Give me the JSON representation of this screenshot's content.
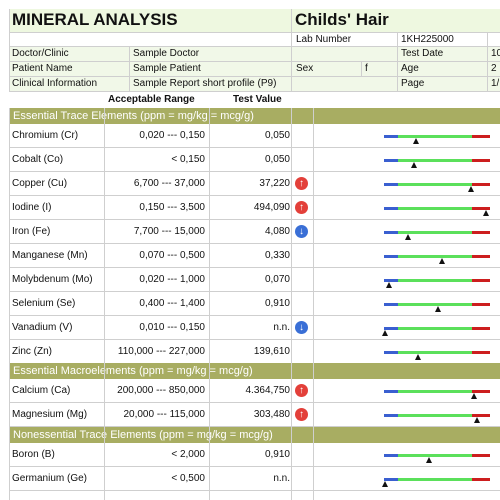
{
  "header": {
    "report_title": "MINERAL ANALYSIS",
    "sample_type": "Childs' Hair",
    "lab_number_label": "Lab Number",
    "lab_number": "1KH225000",
    "info": {
      "doctor_label": "Doctor/Clinic",
      "doctor": "Sample Doctor",
      "patient_label": "Patient Name",
      "patient": "Sample Patient",
      "clinical_label": "Clinical Information",
      "clinical": "Sample Report short profile (P9)",
      "sex_label": "Sex",
      "sex": "f",
      "test_date_label": "Test Date",
      "test_date": "10",
      "age_label": "Age",
      "age": "2",
      "page_label": "Page",
      "page": "1/"
    },
    "col_range": "Acceptable Range",
    "col_value": "Test Value"
  },
  "sections": [
    {
      "title": "Essential Trace Elements (ppm = mg/kg = mcg/g)",
      "rows": [
        {
          "name": "Chromium (Cr)",
          "range": "0,020 --- 0,150",
          "value": "0,050",
          "flag": "",
          "mark": 0.3
        },
        {
          "name": "Cobalt (Co)",
          "range": "< 0,150",
          "value": "0,050",
          "flag": "",
          "mark": 0.28
        },
        {
          "name": "Copper (Cu)",
          "range": "6,700 --- 37,000",
          "value": "37,220",
          "flag": "up",
          "mark": 0.82
        },
        {
          "name": "Iodine (I)",
          "range": "0,150 --- 3,500",
          "value": "494,090",
          "flag": "up",
          "mark": 0.96
        },
        {
          "name": "Iron (Fe)",
          "range": "7,700 --- 15,000",
          "value": "4,080",
          "flag": "down",
          "mark": 0.23
        },
        {
          "name": "Manganese (Mn)",
          "range": "0,070 --- 0,500",
          "value": "0,330",
          "flag": "",
          "mark": 0.55
        },
        {
          "name": "Molybdenum (Mo)",
          "range": "0,020 --- 1,000",
          "value": "0,070",
          "flag": "",
          "mark": 0.05
        },
        {
          "name": "Selenium (Se)",
          "range": "0,400 --- 1,400",
          "value": "0,910",
          "flag": "",
          "mark": 0.51
        },
        {
          "name": "Vanadium (V)",
          "range": "0,010 --- 0,150",
          "value": "n.n.",
          "flag": "down",
          "mark": 0.01
        },
        {
          "name": "Zinc (Zn)",
          "range": "110,000 --- 227,000",
          "value": "139,610",
          "flag": "",
          "mark": 0.32
        }
      ]
    },
    {
      "title": "Essential Macroelements (ppm = mg/kg = mcg/g)",
      "rows": [
        {
          "name": "Calcium (Ca)",
          "range": "200,000 --- 850,000",
          "value": "4.364,750",
          "flag": "up",
          "mark": 0.85
        },
        {
          "name": "Magnesium (Mg)",
          "range": "20,000 --- 115,000",
          "value": "303,480",
          "flag": "up",
          "mark": 0.88
        }
      ]
    },
    {
      "title": "Nonessential Trace Elements (ppm = mg/kg = mcg/g)",
      "rows": [
        {
          "name": "Boron (B)",
          "range": "< 2,000",
          "value": "0,910",
          "flag": "",
          "mark": 0.42
        },
        {
          "name": "Germanium (Ge)",
          "range": "< 0,500",
          "value": "n.n.",
          "flag": "",
          "mark": 0.01
        }
      ]
    }
  ],
  "colors": {
    "section_bg": "#a8ad62",
    "bar_blue": "#3a5fd0",
    "bar_green": "#5be05b",
    "bar_red": "#cc1e1e",
    "arrow_up": "#e3403a",
    "arrow_down": "#3a6fd6"
  },
  "icons": {
    "up": "arrow-up-icon",
    "down": "arrow-down-icon"
  }
}
